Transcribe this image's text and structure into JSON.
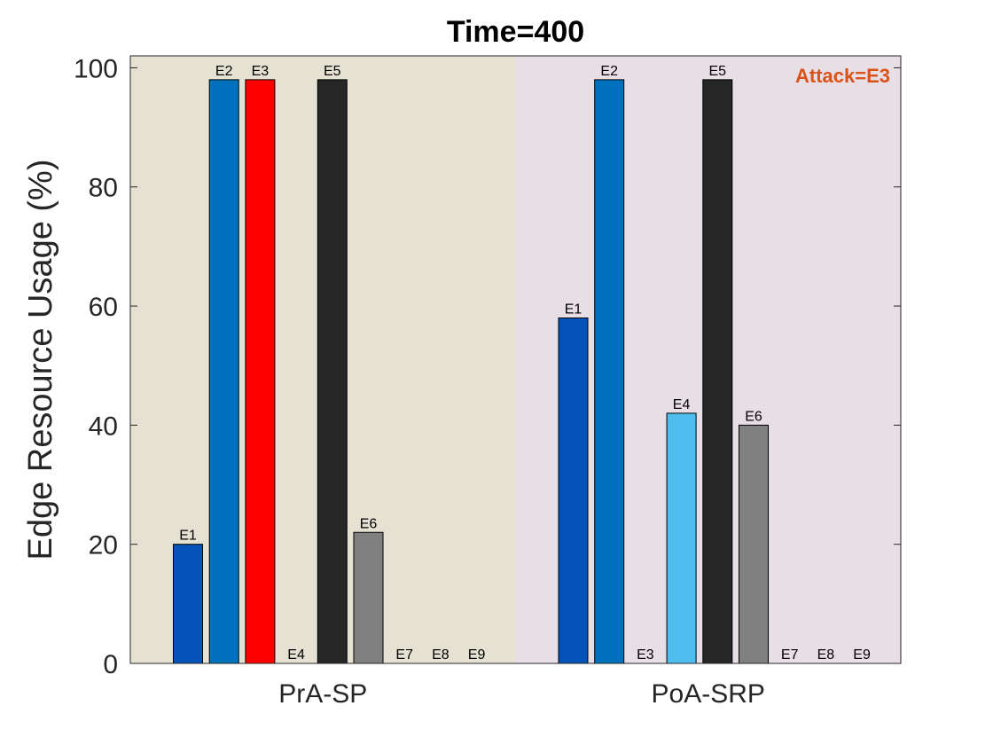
{
  "chart_data": {
    "type": "bar",
    "title": "Time=400",
    "xlabel": "",
    "ylabel": "Edge Resource Usage (%)",
    "ylim": [
      0,
      102
    ],
    "yticks": [
      0,
      20,
      40,
      60,
      80,
      100
    ],
    "grid": false,
    "groups": [
      {
        "name": "PrA-SP",
        "background": "#e6e2d3",
        "bars": [
          {
            "label": "E1",
            "value": 20,
            "color": "#0353b8"
          },
          {
            "label": "E2",
            "value": 98,
            "color": "#0072bd"
          },
          {
            "label": "E3",
            "value": 98,
            "color": "#ff0000"
          },
          {
            "label": "E4",
            "value": 0,
            "color": "#4dbeee"
          },
          {
            "label": "E5",
            "value": 98,
            "color": "#262626"
          },
          {
            "label": "E6",
            "value": 22,
            "color": "#808080"
          },
          {
            "label": "E7",
            "value": 0,
            "color": "#808080"
          },
          {
            "label": "E8",
            "value": 0,
            "color": "#808080"
          },
          {
            "label": "E9",
            "value": 0,
            "color": "#808080"
          }
        ]
      },
      {
        "name": "PoA-SRP",
        "background": "#e8dee6",
        "bars": [
          {
            "label": "E1",
            "value": 58,
            "color": "#0353b8"
          },
          {
            "label": "E2",
            "value": 98,
            "color": "#0072bd"
          },
          {
            "label": "E3",
            "value": 0,
            "color": "#ff0000"
          },
          {
            "label": "E4",
            "value": 42,
            "color": "#4dbeee"
          },
          {
            "label": "E5",
            "value": 98,
            "color": "#262626"
          },
          {
            "label": "E6",
            "value": 40,
            "color": "#808080"
          },
          {
            "label": "E7",
            "value": 0,
            "color": "#808080"
          },
          {
            "label": "E8",
            "value": 0,
            "color": "#808080"
          },
          {
            "label": "E9",
            "value": 0,
            "color": "#808080"
          }
        ]
      }
    ],
    "annotation": {
      "text": "Attack=E3",
      "color": "#d95319"
    }
  }
}
